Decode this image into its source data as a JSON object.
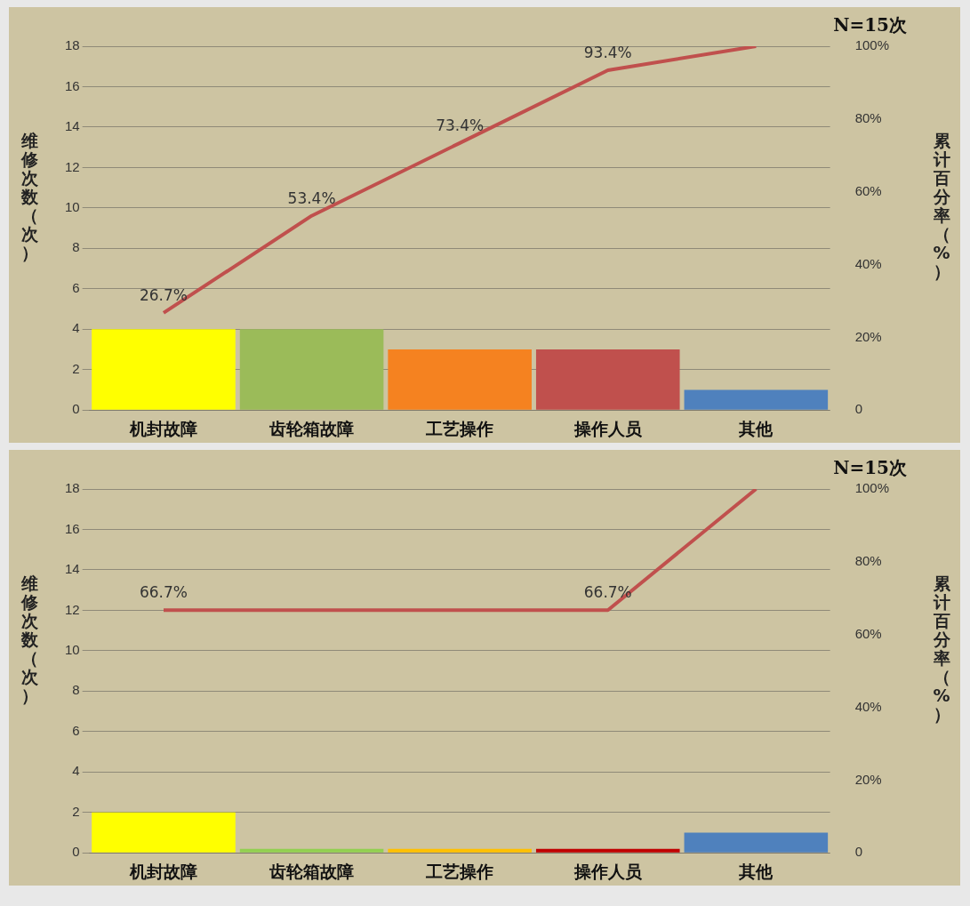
{
  "chart_data": [
    {
      "type": "bar",
      "title": "N=15次",
      "ylabel": "维修次数（次）",
      "y2label": "累计百分率（%）",
      "categories": [
        "机封故障",
        "齿轮箱故障",
        "工艺操作",
        "操作人员",
        "其他"
      ],
      "ylim": [
        0,
        18
      ],
      "yticks": [
        0,
        2,
        4,
        6,
        8,
        10,
        12,
        14,
        16,
        18
      ],
      "y2lim": [
        0,
        100
      ],
      "y2ticks": [
        {
          "value": 0,
          "label": "0"
        },
        {
          "value": 20,
          "label": "20%"
        },
        {
          "value": 40,
          "label": "40%"
        },
        {
          "value": 60,
          "label": "60%"
        },
        {
          "value": 80,
          "label": "80%"
        },
        {
          "value": 100,
          "label": "100%"
        }
      ],
      "grid": "y",
      "legend": false,
      "series": [
        {
          "colors": [
            "#ffff00",
            "#9bbb59",
            "#f58220",
            "#c0504d",
            "#4f81bd"
          ],
          "values": [
            4,
            4,
            3,
            3,
            1
          ]
        },
        {
          "type": "line",
          "axis": "y2",
          "color": "#c0504d",
          "marker": "none",
          "values": [
            26.7,
            53.4,
            73.4,
            93.4,
            100
          ],
          "value_labels": [
            "26.7%",
            "53.4%",
            "73.4%",
            "93.4%",
            null
          ]
        }
      ]
    },
    {
      "type": "bar",
      "title": "N=15次",
      "ylabel": "维修次数（次）",
      "y2label": "累计百分率（%）",
      "categories": [
        "机封故障",
        "齿轮箱故障",
        "工艺操作",
        "操作人员",
        "其他"
      ],
      "ylim": [
        0,
        18
      ],
      "yticks": [
        0,
        2,
        4,
        6,
        8,
        10,
        12,
        14,
        16,
        18
      ],
      "y2lim": [
        0,
        100
      ],
      "y2ticks": [
        {
          "value": 0,
          "label": "0"
        },
        {
          "value": 20,
          "label": "20%"
        },
        {
          "value": 40,
          "label": "40%"
        },
        {
          "value": 60,
          "label": "60%"
        },
        {
          "value": 80,
          "label": "80%"
        },
        {
          "value": 100,
          "label": "100%"
        }
      ],
      "grid": "y",
      "legend": false,
      "series": [
        {
          "colors": [
            "#ffff00",
            "#92d050",
            "#ffc000",
            "#c00000",
            "#4f81bd"
          ],
          "values": [
            2,
            0.2,
            0.2,
            0.2,
            1
          ]
        },
        {
          "type": "line",
          "axis": "y2",
          "color": "#c0504d",
          "marker": "none",
          "values": [
            66.7,
            66.7,
            66.7,
            66.7,
            100
          ],
          "value_labels": [
            "66.7%",
            null,
            null,
            "66.7%",
            null
          ]
        }
      ]
    }
  ]
}
